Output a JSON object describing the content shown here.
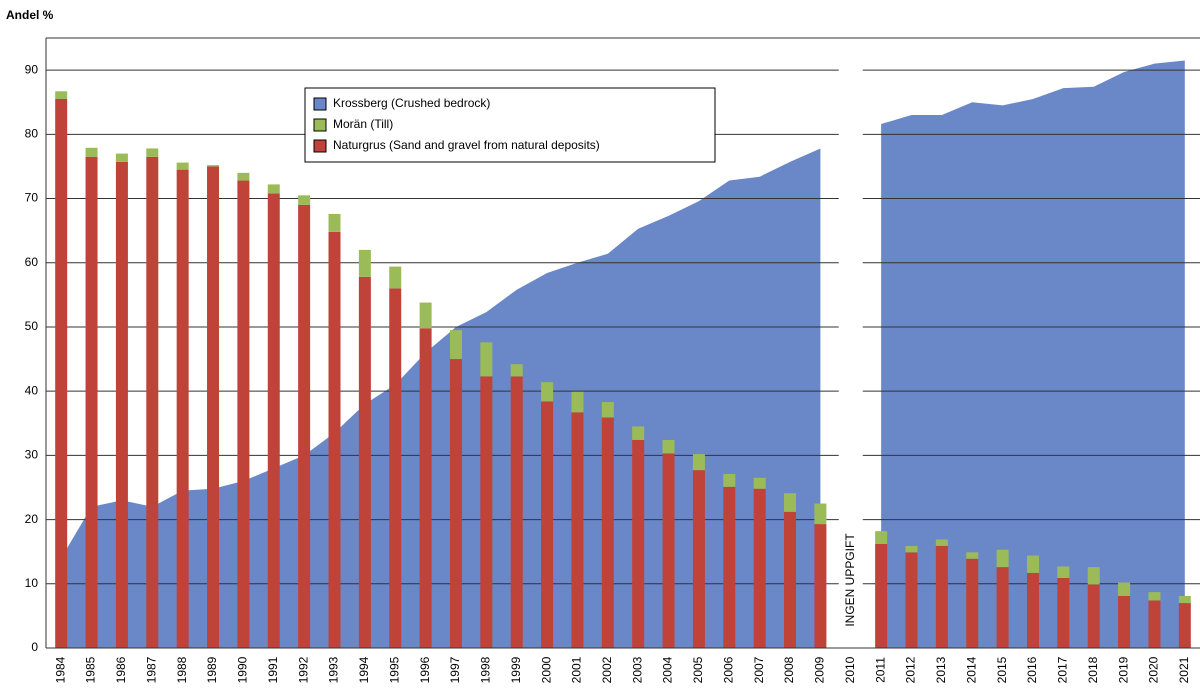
{
  "chart_data": {
    "type": "bar",
    "y_axis_label": "Andel %",
    "annotation": "INGEN UPPGIFT",
    "categories": [
      "1984",
      "1985",
      "1986",
      "1987",
      "1988",
      "1989",
      "1990",
      "1991",
      "1992",
      "1993",
      "1994",
      "1995",
      "1996",
      "1997",
      "1998",
      "1999",
      "2000",
      "2001",
      "2002",
      "2003",
      "2004",
      "2005",
      "2006",
      "2007",
      "2008",
      "2009",
      "2010",
      "2011",
      "2012",
      "2013",
      "2014",
      "2015",
      "2016",
      "2017",
      "2018",
      "2019",
      "2020",
      "2021"
    ],
    "series": [
      {
        "name": "Krossberg (Crushed bedrock)",
        "type": "area",
        "color": "#6a88c7",
        "values": [
          14,
          22,
          23,
          22,
          24.5,
          24.8,
          26,
          28,
          30,
          33.5,
          38,
          41,
          46,
          50,
          52.3,
          55.8,
          58.4,
          60,
          61.4,
          65.3,
          67.3,
          69.6,
          72.8,
          73.4,
          75.7,
          77.8,
          null,
          81.6,
          83,
          83,
          85,
          84.5,
          85.5,
          87.2,
          87.4,
          89.7,
          91,
          91.5
        ]
      },
      {
        "name": "Morän (Till)",
        "type": "bar",
        "color": "#9bbb59",
        "values": [
          1.2,
          1.4,
          1.3,
          1.3,
          1.1,
          0.2,
          1.2,
          1.4,
          1.5,
          2.8,
          4.2,
          3.4,
          4,
          4.5,
          5.3,
          1.9,
          3,
          3.2,
          2.4,
          2.1,
          2.1,
          2.5,
          2,
          1.7,
          2.9,
          3.2,
          null,
          2,
          1,
          1,
          1,
          2.7,
          2.7,
          1.8,
          2.7,
          2.1,
          1.3,
          1.1
        ]
      },
      {
        "name": "Naturgrus (Sand and gravel from natural deposits)",
        "type": "bar",
        "color": "#c0433a",
        "values": [
          85.5,
          76.5,
          75.7,
          76.5,
          74.5,
          75,
          72.8,
          70.8,
          69,
          64.8,
          57.8,
          56,
          49.8,
          45,
          42.3,
          42.3,
          38.4,
          36.7,
          35.9,
          32.4,
          30.3,
          27.7,
          25.1,
          24.8,
          21.2,
          19.3,
          null,
          16.2,
          14.9,
          15.9,
          13.9,
          12.6,
          11.7,
          10.9,
          9.9,
          8.1,
          7.4,
          7
        ]
      }
    ],
    "ylim": [
      0,
      95
    ],
    "yticks": [
      0,
      10,
      20,
      30,
      40,
      50,
      60,
      70,
      80,
      90
    ],
    "grid": true
  }
}
